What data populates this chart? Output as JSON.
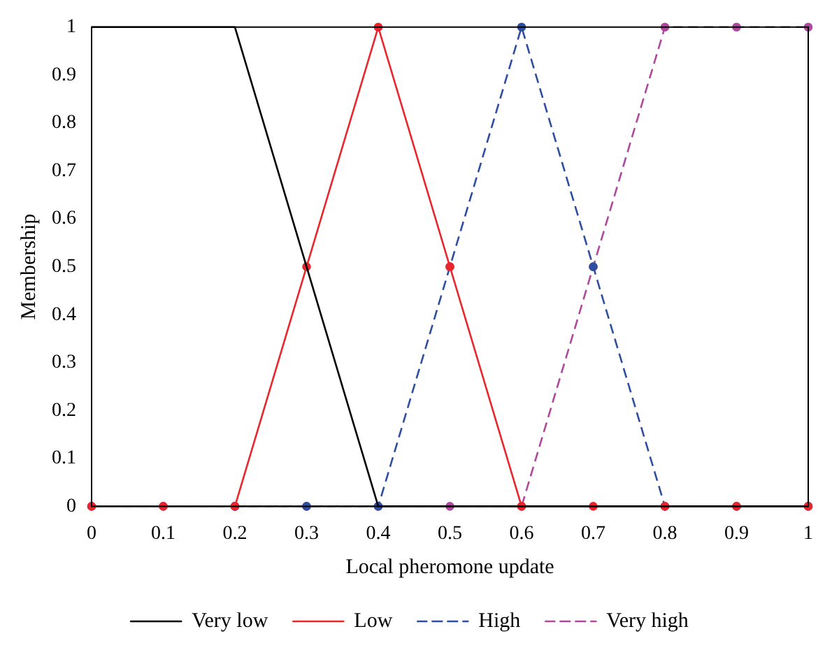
{
  "chart_data": {
    "type": "line",
    "xlabel": "Local pheromone update",
    "ylabel": "Membership",
    "x": [
      0,
      0.1,
      0.2,
      0.3,
      0.4,
      0.5,
      0.6,
      0.7,
      0.8,
      0.9,
      1
    ],
    "series": [
      {
        "name": "Very low",
        "color": "#000000",
        "marker": "none",
        "line_style": "solid",
        "values": [
          1,
          1,
          1,
          0.5,
          0,
          0,
          0,
          0,
          0,
          0,
          0
        ]
      },
      {
        "name": "Low",
        "color": "#e8262b",
        "marker": "circle",
        "line_style": "solid",
        "values": [
          0,
          0,
          0,
          0.5,
          1,
          0.5,
          0,
          0,
          0,
          0,
          0
        ]
      },
      {
        "name": "High",
        "color": "#2e4fa0",
        "marker": "circle",
        "line_style": "dashed",
        "values": [
          null,
          null,
          0,
          0,
          0,
          0.5,
          1,
          0.5,
          0,
          0,
          0
        ]
      },
      {
        "name": "Very high",
        "color": "#b0499e",
        "marker": "circle",
        "line_style": "dashed",
        "values": [
          0,
          0,
          0,
          0,
          0,
          0,
          0,
          0.5,
          1,
          1,
          1
        ]
      }
    ],
    "xlim": [
      0,
      1
    ],
    "ylim": [
      0,
      1
    ],
    "xticks": [
      0,
      0.1,
      0.2,
      0.3,
      0.4,
      0.5,
      0.6,
      0.7,
      0.8,
      0.9,
      1
    ],
    "yticks": [
      0,
      0.1,
      0.2,
      0.3,
      0.4,
      0.5,
      0.6,
      0.7,
      0.8,
      0.9,
      1
    ],
    "grid": false,
    "legend": "bottom"
  }
}
